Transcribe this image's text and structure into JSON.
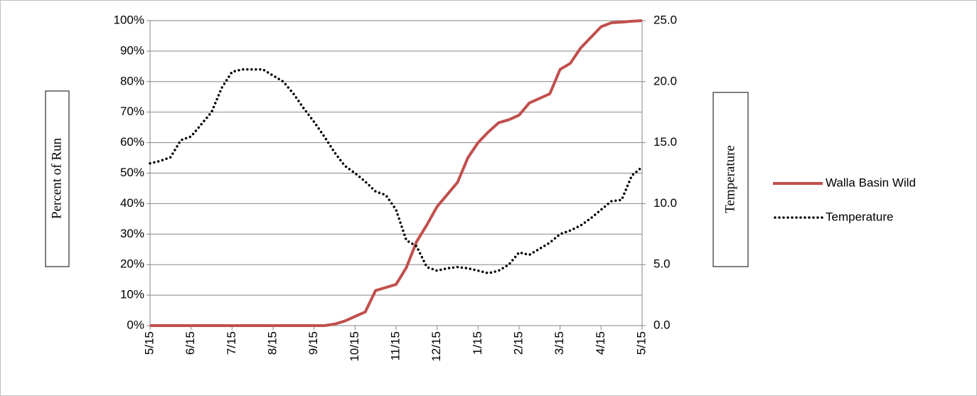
{
  "chart_data": {
    "type": "line",
    "categories": [
      "5/15",
      null,
      null,
      null,
      "6/15",
      null,
      null,
      null,
      "7/15",
      null,
      null,
      null,
      "8/15",
      null,
      null,
      null,
      "9/15",
      null,
      null,
      null,
      "10/15",
      null,
      null,
      null,
      "11/15",
      null,
      null,
      null,
      "12/15",
      null,
      null,
      null,
      "1/15",
      null,
      null,
      null,
      "2/15",
      null,
      null,
      null,
      "3/15",
      null,
      null,
      null,
      "4/15",
      null,
      null,
      null,
      "5/15"
    ],
    "series": [
      {
        "name": "Walla Basin Wild",
        "color": "#c0504d",
        "axis": "y",
        "style": "solid",
        "values": [
          0,
          0,
          0,
          0,
          0,
          0,
          0,
          0,
          0,
          0,
          0,
          0,
          0,
          0,
          0,
          0,
          0,
          0,
          0.5,
          1.5,
          3,
          4.5,
          11.5,
          12.5,
          13.5,
          19,
          27.5,
          33,
          39,
          43,
          47,
          55,
          60,
          63.5,
          66.5,
          67.5,
          69,
          73,
          74.5,
          76,
          84,
          86,
          91,
          94.5,
          98,
          99.3,
          99.5,
          99.8,
          100
        ]
      },
      {
        "name": "Temperature",
        "color": "#000000",
        "axis": "y2",
        "style": "dotted",
        "values": [
          13.3,
          13.5,
          13.8,
          15.2,
          15.5,
          16.5,
          17.5,
          19.5,
          20.8,
          21,
          21,
          21,
          20.5,
          20,
          19,
          17.8,
          16.7,
          15.5,
          14.2,
          13.1,
          12.5,
          11.8,
          11,
          10.7,
          9.5,
          7,
          6.5,
          4.8,
          4.5,
          4.7,
          4.8,
          4.7,
          4.5,
          4.3,
          4.5,
          5,
          6,
          5.8,
          6.3,
          6.8,
          7.5,
          7.8,
          8.2,
          8.8,
          9.5,
          10.2,
          10.3,
          12.3,
          13
        ]
      }
    ],
    "y_label": "Percent of Run",
    "y2_label": "Temperature",
    "ylim": [
      0,
      100
    ],
    "yticks": [
      {
        "value": 0,
        "label": "0%"
      },
      {
        "value": 10,
        "label": "10%"
      },
      {
        "value": 20,
        "label": "20%"
      },
      {
        "value": 30,
        "label": "30%"
      },
      {
        "value": 40,
        "label": "40%"
      },
      {
        "value": 50,
        "label": "50%"
      },
      {
        "value": 60,
        "label": "60%"
      },
      {
        "value": 70,
        "label": "70%"
      },
      {
        "value": 80,
        "label": "80%"
      },
      {
        "value": 90,
        "label": "90%"
      },
      {
        "value": 100,
        "label": "100%"
      }
    ],
    "y2lim": [
      0,
      25
    ],
    "y2ticks": [
      {
        "value": 0,
        "label": "0.0"
      },
      {
        "value": 5,
        "label": "5.0"
      },
      {
        "value": 10,
        "label": "10.0"
      },
      {
        "value": 15,
        "label": "15.0"
      },
      {
        "value": 20,
        "label": "20.0"
      },
      {
        "value": 25,
        "label": "25.0"
      }
    ],
    "grid": true,
    "legend": "right"
  }
}
